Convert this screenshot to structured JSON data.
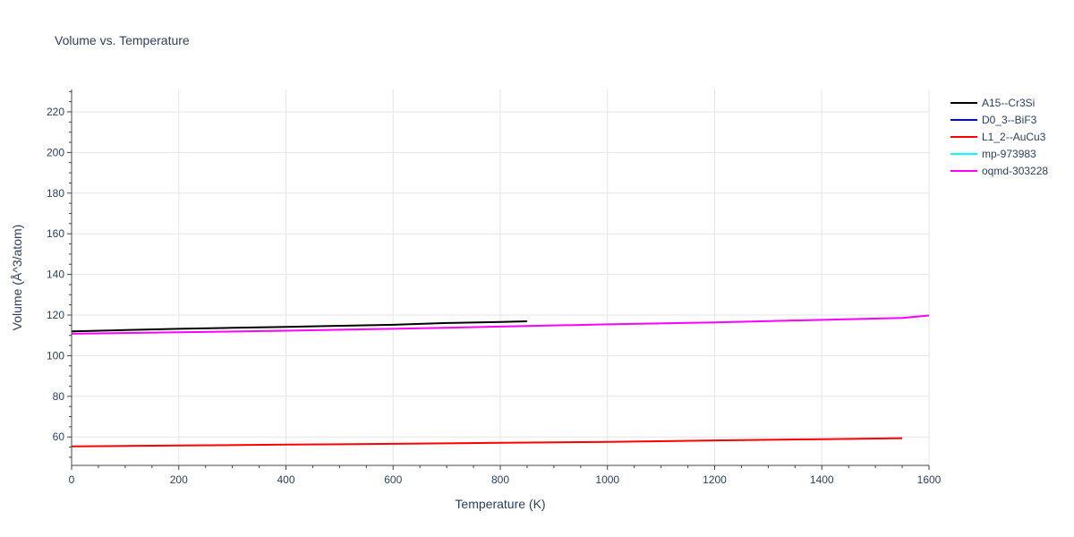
{
  "chart_data": {
    "type": "line",
    "title": "Volume vs. Temperature",
    "xlabel": "Temperature (K)",
    "ylabel": "Volume (Å^3/atom)",
    "xlim": [
      0,
      1600
    ],
    "ylim": [
      46,
      231
    ],
    "xticks": [
      0,
      200,
      400,
      600,
      800,
      1000,
      1200,
      1400,
      1600
    ],
    "yticks": [
      60,
      80,
      100,
      120,
      140,
      160,
      180,
      200,
      220
    ],
    "grid": true,
    "legend_position": "top-right",
    "series": [
      {
        "name": "A15--Cr3Si",
        "color": "#000000",
        "x": [
          0,
          100,
          200,
          300,
          400,
          500,
          600,
          700,
          800,
          850
        ],
        "y": [
          112.0,
          112.6,
          113.2,
          113.7,
          114.2,
          114.7,
          115.2,
          116.1,
          116.6,
          116.9
        ]
      },
      {
        "name": "D0_3--BiF3",
        "color": "#0000ff",
        "x": [],
        "y": []
      },
      {
        "name": "L1_2--AuCu3",
        "color": "#ff0000",
        "x": [
          0,
          200,
          400,
          600,
          800,
          1000,
          1200,
          1400,
          1550
        ],
        "y": [
          55.4,
          55.8,
          56.2,
          56.6,
          57.1,
          57.6,
          58.3,
          58.9,
          59.4
        ]
      },
      {
        "name": "mp-973983",
        "color": "#00ffff",
        "x": [],
        "y": []
      },
      {
        "name": "oqmd-303228",
        "color": "#ff00ff",
        "x": [
          0,
          200,
          400,
          600,
          800,
          1000,
          1200,
          1400,
          1550,
          1600
        ],
        "y": [
          110.8,
          111.5,
          112.3,
          113.2,
          114.3,
          115.4,
          116.4,
          117.6,
          118.6,
          119.8
        ]
      }
    ]
  }
}
